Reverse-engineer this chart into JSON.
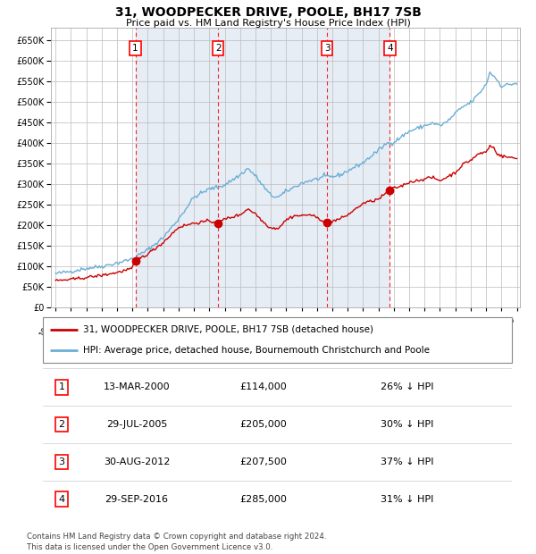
{
  "title": "31, WOODPECKER DRIVE, POOLE, BH17 7SB",
  "subtitle": "Price paid vs. HM Land Registry's House Price Index (HPI)",
  "hpi_color": "#6baed6",
  "price_color": "#cc0000",
  "background_color": "#ffffff",
  "plot_bg_color": "#dce6f1",
  "grid_color": "#bbbbbb",
  "ylim": [
    0,
    680000
  ],
  "ytick_step": 50000,
  "x_start_year": 1995,
  "x_end_year": 2025,
  "transactions": [
    {
      "label": "1",
      "date": "13-MAR-2000",
      "year": 2000.19,
      "price": 114000,
      "pct": "26% ↓ HPI"
    },
    {
      "label": "2",
      "date": "29-JUL-2005",
      "year": 2005.57,
      "price": 205000,
      "pct": "30% ↓ HPI"
    },
    {
      "label": "3",
      "date": "30-AUG-2012",
      "year": 2012.66,
      "price": 207500,
      "pct": "37% ↓ HPI"
    },
    {
      "label": "4",
      "date": "29-SEP-2016",
      "year": 2016.74,
      "price": 285000,
      "pct": "31% ↓ HPI"
    }
  ],
  "legend_line1": "31, WOODPECKER DRIVE, POOLE, BH17 7SB (detached house)",
  "legend_line2": "HPI: Average price, detached house, Bournemouth Christchurch and Poole",
  "footer": "Contains HM Land Registry data © Crown copyright and database right 2024.\nThis data is licensed under the Open Government Licence v3.0."
}
